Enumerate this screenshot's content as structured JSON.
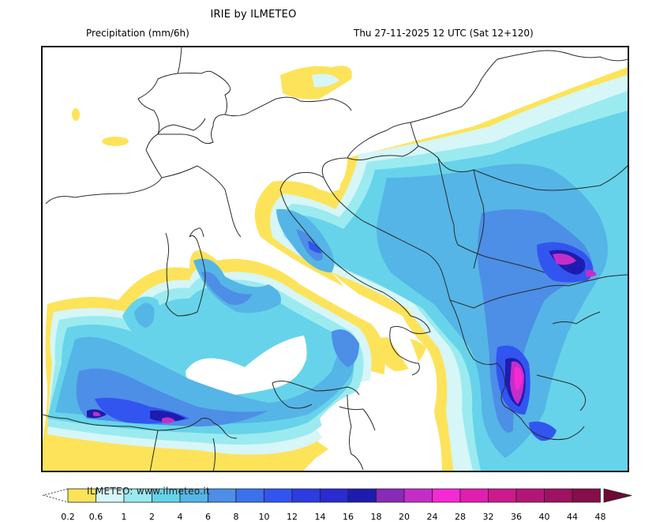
{
  "header": {
    "title": "IRIE by ILMETEO",
    "variable": "Precipitation (mm/6h)",
    "valid_time": "Thu 27-11-2025 12 UTC (Sat 12+120)"
  },
  "map": {
    "region": "Central Mediterranean / Italy / Balkans / Greece",
    "max_zones": [
      {
        "area": "Western Greece (Peloponnese/Aetolia)",
        "range_mm": "24-32"
      },
      {
        "area": "Northern Greece / Bulgaria border",
        "range_mm": "20-28"
      },
      {
        "area": "Northern Algeria coast",
        "range_mm": "18-24"
      },
      {
        "area": "Central Tyrrhenian coast (Lazio)",
        "range_mm": "14-16"
      }
    ]
  },
  "colorbar": {
    "watermark": "ILMETEO:  www.ilmeteo.it",
    "labels": [
      "0.2",
      "0.6",
      "1",
      "2",
      "4",
      "6",
      "8",
      "10",
      "12",
      "14",
      "16",
      "18",
      "20",
      "24",
      "28",
      "32",
      "36",
      "40",
      "44",
      "48"
    ],
    "colors": [
      "#fde35a",
      "#d6f6f7",
      "#9beaf0",
      "#66d3ea",
      "#55b5e6",
      "#4d8ee6",
      "#3a72ec",
      "#3255f0",
      "#2b3ce0",
      "#2a2bd0",
      "#1e1cae",
      "#8a2ab8",
      "#c42ec8",
      "#f52ad2",
      "#e21eb0",
      "#cc1a8e",
      "#b41678",
      "#9e1262",
      "#860e4a",
      "#6d0a36"
    ]
  },
  "chart_data": {
    "type": "heatmap",
    "title": "IRIE by ILMETEO — Precipitation (mm/6h)",
    "subtitle": "Thu 27-11-2025 12 UTC (Sat 12+120)",
    "legend": {
      "position": "bottom",
      "levels": [
        0.2,
        0.6,
        1,
        2,
        4,
        6,
        8,
        10,
        12,
        14,
        16,
        18,
        20,
        24,
        28,
        32,
        36,
        40,
        44,
        48
      ],
      "units": "mm/6h"
    }
  }
}
